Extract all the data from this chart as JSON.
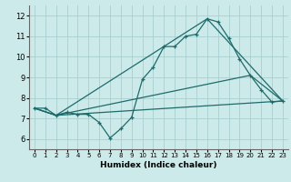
{
  "xlabel": "Humidex (Indice chaleur)",
  "background_color": "#cceaea",
  "grid_color": "#aacece",
  "line_color": "#1e6b6b",
  "xlim": [
    -0.5,
    23.5
  ],
  "ylim": [
    5.5,
    12.5
  ],
  "yticks": [
    6,
    7,
    8,
    9,
    10,
    11,
    12
  ],
  "xticks": [
    0,
    1,
    2,
    3,
    4,
    5,
    6,
    7,
    8,
    9,
    10,
    11,
    12,
    13,
    14,
    15,
    16,
    17,
    18,
    19,
    20,
    21,
    22,
    23
  ],
  "main_series": {
    "x": [
      0,
      1,
      2,
      3,
      4,
      5,
      6,
      7,
      8,
      9,
      10,
      11,
      12,
      13,
      14,
      15,
      16,
      17,
      18,
      19,
      20,
      21,
      22,
      23
    ],
    "y": [
      7.5,
      7.5,
      7.15,
      7.3,
      7.2,
      7.2,
      6.8,
      6.05,
      6.5,
      7.05,
      8.9,
      9.5,
      10.5,
      10.5,
      11.0,
      11.1,
      11.85,
      11.7,
      10.9,
      9.9,
      9.1,
      8.4,
      7.8,
      7.85
    ]
  },
  "triangle_lines": [
    {
      "x": [
        0,
        2,
        16,
        23
      ],
      "y": [
        7.5,
        7.15,
        11.85,
        7.85
      ]
    },
    {
      "x": [
        0,
        2,
        20,
        23
      ],
      "y": [
        7.5,
        7.15,
        9.1,
        7.85
      ]
    },
    {
      "x": [
        0,
        2,
        23
      ],
      "y": [
        7.5,
        7.15,
        7.85
      ]
    }
  ]
}
